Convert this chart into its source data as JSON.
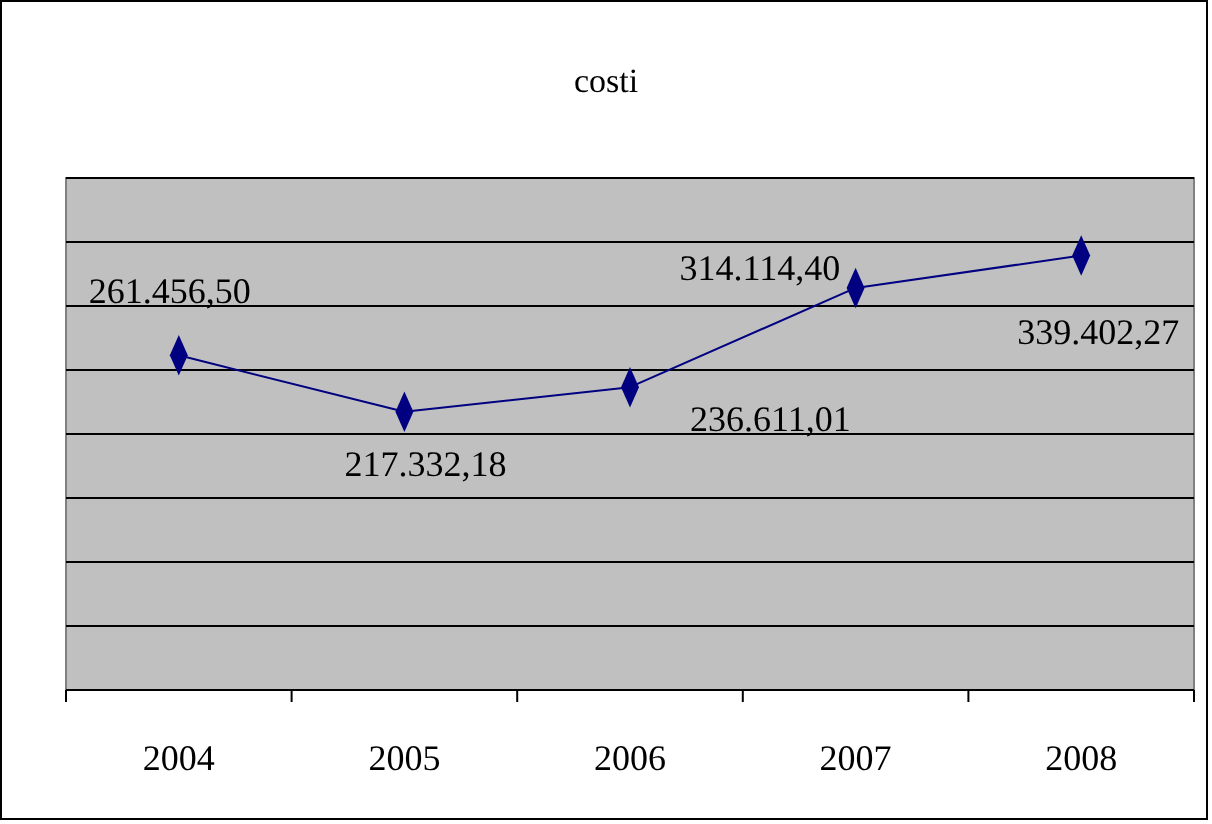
{
  "chart_data": {
    "type": "line",
    "title": "costi",
    "categories": [
      "2004",
      "2005",
      "2006",
      "2007",
      "2008"
    ],
    "series": [
      {
        "color": "#000080",
        "values": [
          261456.5,
          217332.18,
          236611.01,
          314114.4,
          339402.27
        ],
        "value_labels": [
          "261.456,50",
          "217.332,18",
          "236.611,01",
          "314.114,40",
          "339.402,27"
        ]
      }
    ],
    "ylim": [
      0,
      400000
    ],
    "yticks": [
      {
        "value": 0,
        "label": null
      },
      {
        "value": 50000,
        "label": null
      },
      {
        "value": 100000,
        "label": null
      },
      {
        "value": 150000,
        "label": null
      },
      {
        "value": 200000,
        "label": null
      },
      {
        "value": 250000,
        "label": null
      },
      {
        "value": 300000,
        "label": null
      },
      {
        "value": 350000,
        "label": null
      },
      {
        "value": 400000,
        "label": null
      }
    ],
    "grid": "y",
    "marker": "diamond",
    "line_style": "solid",
    "tick_labels": "x"
  }
}
